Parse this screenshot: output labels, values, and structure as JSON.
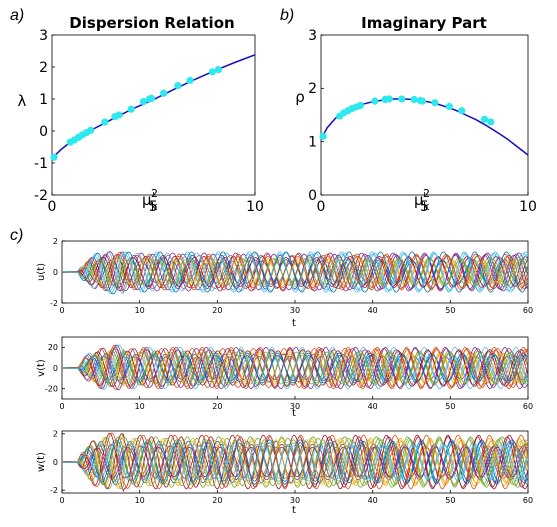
{
  "panel_labels": [
    "a)",
    "b)",
    "c)"
  ],
  "chart_data": [
    {
      "type": "line",
      "panel": "a)",
      "title": "Dispersion Relation",
      "xlabel": "μ",
      "xlabel_sub": "k",
      "xlabel_sup": "2",
      "ylabel": "λ",
      "xlim": [
        0,
        10
      ],
      "ylim": [
        -2,
        3
      ],
      "xticks": [
        0,
        5,
        10
      ],
      "yticks": [
        -2,
        -1,
        0,
        1,
        2,
        3
      ],
      "curve_color": "#1010c0",
      "marker_color": "#2ee8f0",
      "curve": {
        "x": [
          0,
          0.5,
          1,
          1.5,
          2,
          3,
          4,
          5,
          6,
          7,
          8,
          9,
          10
        ],
        "y": [
          -0.85,
          -0.55,
          -0.3,
          -0.12,
          0.05,
          0.38,
          0.7,
          0.98,
          1.3,
          1.6,
          1.88,
          2.14,
          2.38
        ]
      },
      "markers": {
        "x": [
          0.1,
          0.9,
          1.1,
          1.3,
          1.5,
          1.7,
          1.9,
          2.6,
          3.1,
          3.3,
          3.9,
          4.5,
          4.8,
          4.9,
          5.5,
          6.2,
          6.8,
          7.9,
          8.2
        ],
        "y": [
          -0.82,
          -0.35,
          -0.28,
          -0.2,
          -0.12,
          -0.05,
          0.02,
          0.28,
          0.45,
          0.5,
          0.68,
          0.92,
          1.0,
          1.02,
          1.18,
          1.42,
          1.58,
          1.85,
          1.92
        ]
      }
    },
    {
      "type": "line",
      "panel": "b)",
      "title": "Imaginary Part",
      "xlabel": "μ",
      "xlabel_sub": "k",
      "xlabel_sup": "2",
      "ylabel": "ρ",
      "xlim": [
        0,
        10
      ],
      "ylim": [
        0,
        3
      ],
      "xticks": [
        0,
        5,
        10
      ],
      "yticks": [
        0,
        1,
        2,
        3
      ],
      "curve_color": "#1010c0",
      "marker_color": "#2ee8f0",
      "curve": {
        "x": [
          0,
          0.3,
          0.7,
          1,
          1.5,
          2,
          2.5,
          3,
          3.5,
          4,
          4.5,
          5,
          5.5,
          6,
          6.5,
          7,
          7.5,
          8,
          8.5,
          9,
          9.5,
          10
        ],
        "y": [
          1.05,
          1.26,
          1.44,
          1.52,
          1.62,
          1.7,
          1.75,
          1.78,
          1.8,
          1.8,
          1.79,
          1.76,
          1.72,
          1.66,
          1.59,
          1.5,
          1.41,
          1.3,
          1.18,
          1.05,
          0.9,
          0.75
        ]
      },
      "markers": {
        "x": [
          0.1,
          0.9,
          1.1,
          1.3,
          1.5,
          1.7,
          1.9,
          2.6,
          3.1,
          3.3,
          3.9,
          4.5,
          4.8,
          4.9,
          5.5,
          6.2,
          6.8,
          7.9,
          8.2
        ],
        "y": [
          1.1,
          1.48,
          1.54,
          1.58,
          1.62,
          1.65,
          1.68,
          1.76,
          1.79,
          1.8,
          1.8,
          1.79,
          1.77,
          1.76,
          1.73,
          1.66,
          1.58,
          1.42,
          1.37
        ]
      }
    },
    {
      "type": "line",
      "panel": "c)",
      "ylabel": "u(t)",
      "xlabel": "t",
      "xlim": [
        0,
        60
      ],
      "ylim": [
        -2,
        2
      ],
      "xticks": [
        0,
        10,
        20,
        30,
        40,
        50,
        60
      ],
      "yticks": [
        -2,
        0,
        2
      ],
      "amplitude": 1.3,
      "onset_t": 2,
      "n_series": 20
    },
    {
      "type": "line",
      "ylabel": "v(t)",
      "xlabel": "t",
      "xlim": [
        0,
        60
      ],
      "ylim": [
        -30,
        30
      ],
      "xticks": [
        0,
        10,
        20,
        30,
        40,
        50,
        60
      ],
      "yticks": [
        -20,
        0,
        20
      ],
      "amplitude": 20,
      "onset_t": 2,
      "n_series": 20
    },
    {
      "type": "line",
      "ylabel": "w(t)",
      "xlabel": "t",
      "xlim": [
        0,
        60
      ],
      "ylim": [
        -2.2,
        2.2
      ],
      "xticks": [
        0,
        10,
        20,
        30,
        40,
        50,
        60
      ],
      "yticks": [
        -2,
        0,
        2
      ],
      "amplitude": 1.9,
      "onset_t": 2,
      "n_series": 20
    }
  ],
  "series_colors": [
    "#0072bd",
    "#d95319",
    "#edb120",
    "#7e2f8e",
    "#77ac30",
    "#4dbeee",
    "#a2142f"
  ]
}
